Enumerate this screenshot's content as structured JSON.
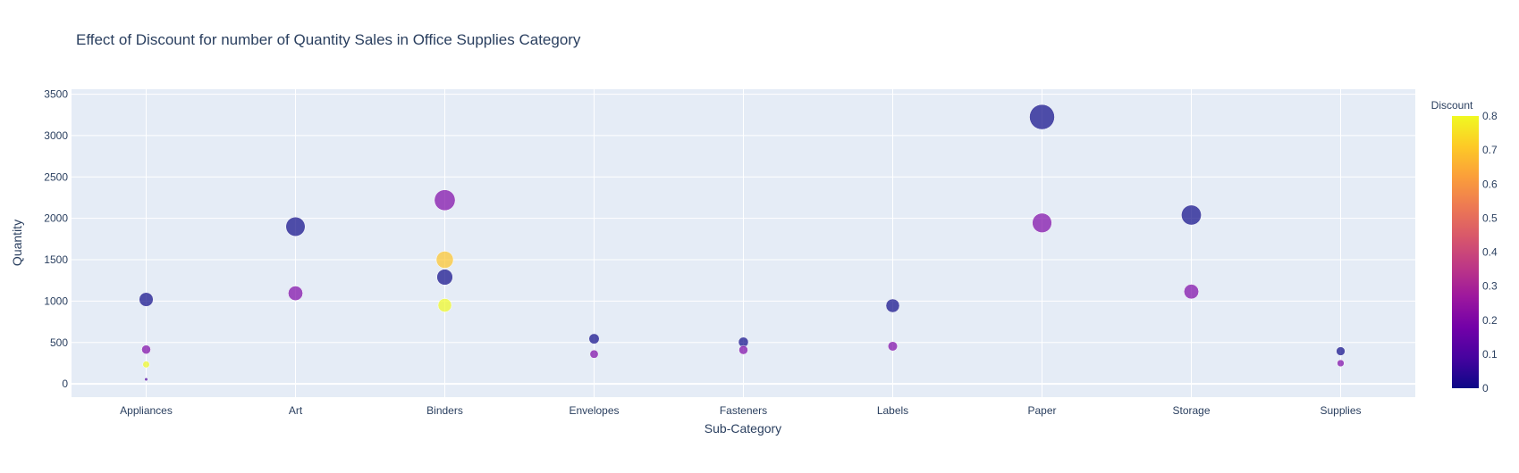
{
  "chart_data": {
    "type": "scatter",
    "title": "Effect of Discount for number of Quantity Sales in Office Supplies Category",
    "xlabel": "Sub-Category",
    "ylabel": "Quantity",
    "categories": [
      "Appliances",
      "Art",
      "Binders",
      "Envelopes",
      "Fasteners",
      "Labels",
      "Paper",
      "Storage",
      "Supplies"
    ],
    "y_ticks": [
      0,
      500,
      1000,
      1500,
      2000,
      2500,
      3000,
      3500
    ],
    "ylim": [
      -160,
      3560
    ],
    "grid": true,
    "colorbar": {
      "title": "Discount",
      "range": [
        0,
        0.8
      ],
      "ticks": [
        "0",
        "0.1",
        "0.2",
        "0.3",
        "0.4",
        "0.5",
        "0.6",
        "0.7",
        "0.8"
      ],
      "colorscale": [
        "#0d0887",
        "#46039f",
        "#7201a8",
        "#9c179e",
        "#bd3786",
        "#d8576b",
        "#ed7953",
        "#fb9f3a",
        "#fdca26",
        "#f0f921"
      ]
    },
    "marker_opacity": 0.7,
    "points": [
      {
        "category": "Appliances",
        "quantity": 1020,
        "discount": 0.0
      },
      {
        "category": "Appliances",
        "quantity": 415,
        "discount": 0.2
      },
      {
        "category": "Appliances",
        "quantity": 235,
        "discount": 0.8
      },
      {
        "category": "Appliances",
        "quantity": 55,
        "discount": 0.1
      },
      {
        "category": "Art",
        "quantity": 1900,
        "discount": 0.0
      },
      {
        "category": "Art",
        "quantity": 1095,
        "discount": 0.2
      },
      {
        "category": "Binders",
        "quantity": 2220,
        "discount": 0.2
      },
      {
        "category": "Binders",
        "quantity": 1500,
        "discount": 0.7
      },
      {
        "category": "Binders",
        "quantity": 1290,
        "discount": 0.0
      },
      {
        "category": "Binders",
        "quantity": 950,
        "discount": 0.8
      },
      {
        "category": "Envelopes",
        "quantity": 545,
        "discount": 0.0
      },
      {
        "category": "Envelopes",
        "quantity": 360,
        "discount": 0.2
      },
      {
        "category": "Fasteners",
        "quantity": 505,
        "discount": 0.0
      },
      {
        "category": "Fasteners",
        "quantity": 410,
        "discount": 0.2
      },
      {
        "category": "Labels",
        "quantity": 945,
        "discount": 0.0
      },
      {
        "category": "Labels",
        "quantity": 455,
        "discount": 0.2
      },
      {
        "category": "Paper",
        "quantity": 3225,
        "discount": 0.0
      },
      {
        "category": "Paper",
        "quantity": 1945,
        "discount": 0.2
      },
      {
        "category": "Storage",
        "quantity": 2040,
        "discount": 0.0
      },
      {
        "category": "Storage",
        "quantity": 1115,
        "discount": 0.2
      },
      {
        "category": "Supplies",
        "quantity": 395,
        "discount": 0.0
      },
      {
        "category": "Supplies",
        "quantity": 250,
        "discount": 0.2
      }
    ]
  }
}
